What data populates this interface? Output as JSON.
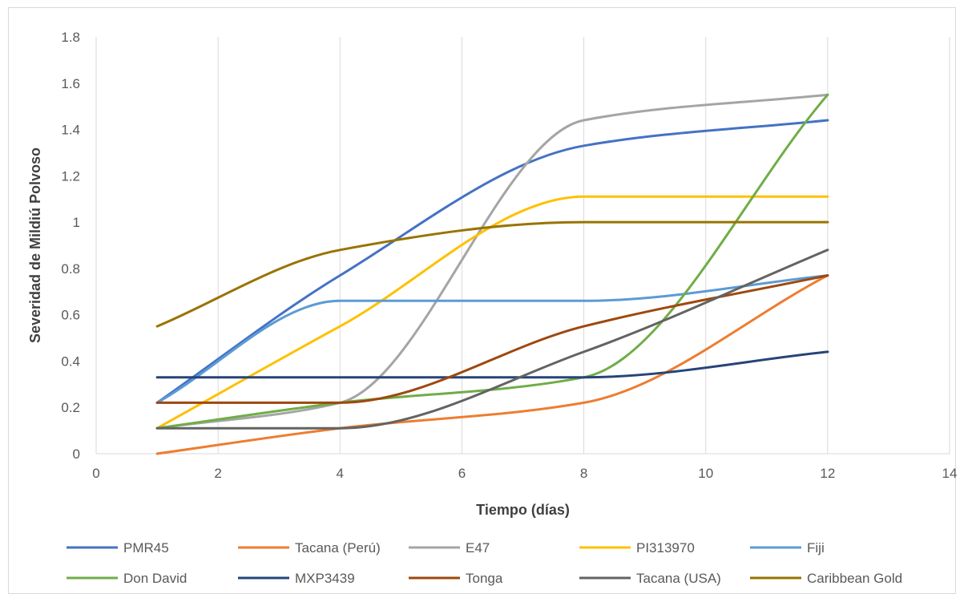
{
  "chart_data": {
    "type": "line",
    "title": "",
    "xlabel": "Tiempo (días)",
    "ylabel": "Severidad de Mildiú Polvoso",
    "xlim": [
      0,
      14
    ],
    "ylim": [
      0,
      1.8
    ],
    "x_ticks": [
      "0",
      "2",
      "4",
      "6",
      "8",
      "10",
      "12",
      "14"
    ],
    "y_ticks": [
      "0",
      "0.2",
      "0.4",
      "0.6",
      "0.8",
      "1",
      "1.2",
      "1.4",
      "1.6",
      "1.8"
    ],
    "x": [
      1,
      4,
      8,
      12
    ],
    "grid": "vertical",
    "legend_position": "bottom",
    "smooth": true,
    "series": [
      {
        "name": "PMR45",
        "color": "#4472C4",
        "values": [
          0.22,
          0.77,
          1.33,
          1.44
        ]
      },
      {
        "name": "Tacana (Perú)",
        "color": "#ED7D31",
        "values": [
          0.0,
          0.11,
          0.22,
          0.77
        ]
      },
      {
        "name": "E47",
        "color": "#A5A5A5",
        "values": [
          0.11,
          0.22,
          1.44,
          1.55
        ]
      },
      {
        "name": "PI313970",
        "color": "#FFC000",
        "values": [
          0.11,
          0.55,
          1.11,
          1.11
        ]
      },
      {
        "name": "Fiji",
        "color": "#5B9BD5",
        "values": [
          0.22,
          0.66,
          0.66,
          0.77
        ]
      },
      {
        "name": "Don David",
        "color": "#70AD47",
        "values": [
          0.11,
          0.22,
          0.33,
          1.55
        ]
      },
      {
        "name": "MXP3439",
        "color": "#264478",
        "values": [
          0.33,
          0.33,
          0.33,
          0.44
        ]
      },
      {
        "name": "Tonga",
        "color": "#9E480E",
        "values": [
          0.22,
          0.22,
          0.55,
          0.77
        ]
      },
      {
        "name": "Tacana (USA)",
        "color": "#636363",
        "values": [
          0.11,
          0.11,
          0.44,
          0.88
        ]
      },
      {
        "name": "Caribbean Gold",
        "color": "#997300",
        "values": [
          0.55,
          0.88,
          1.0,
          1.0
        ]
      }
    ]
  }
}
